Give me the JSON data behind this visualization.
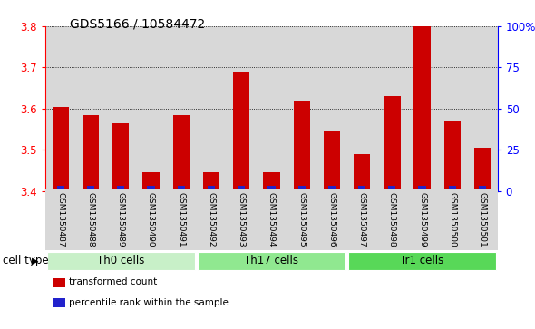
{
  "title": "GDS5166 / 10584472",
  "samples": [
    "GSM1350487",
    "GSM1350488",
    "GSM1350489",
    "GSM1350490",
    "GSM1350491",
    "GSM1350492",
    "GSM1350493",
    "GSM1350494",
    "GSM1350495",
    "GSM1350496",
    "GSM1350497",
    "GSM1350498",
    "GSM1350499",
    "GSM1350500",
    "GSM1350501"
  ],
  "red_values": [
    3.605,
    3.585,
    3.565,
    3.445,
    3.585,
    3.445,
    3.69,
    3.445,
    3.62,
    3.545,
    3.49,
    3.63,
    3.8,
    3.57,
    3.505
  ],
  "blue_values": [
    3,
    3,
    3,
    3,
    3,
    3,
    3,
    3,
    3,
    3,
    3,
    3,
    3,
    3,
    3
  ],
  "ylim_left": [
    3.4,
    3.8
  ],
  "ylim_right": [
    0,
    100
  ],
  "yticks_left": [
    3.4,
    3.5,
    3.6,
    3.7,
    3.8
  ],
  "yticks_right": [
    0,
    25,
    50,
    75,
    100
  ],
  "ytick_labels_right": [
    "0",
    "25",
    "50",
    "75",
    "100%"
  ],
  "groups": [
    {
      "label": "Th0 cells",
      "start": 0,
      "end": 5,
      "color": "#c8f0c8"
    },
    {
      "label": "Th17 cells",
      "start": 5,
      "end": 10,
      "color": "#90e890"
    },
    {
      "label": "Tr1 cells",
      "start": 10,
      "end": 15,
      "color": "#58d858"
    }
  ],
  "cell_type_label": "cell type",
  "legend_items": [
    {
      "color": "#cc0000",
      "label": "transformed count"
    },
    {
      "color": "#2222cc",
      "label": "percentile rank within the sample"
    }
  ],
  "bar_width": 0.55,
  "red_color": "#cc0000",
  "blue_color": "#2222cc",
  "axis_bg": "#d8d8d8",
  "base": 3.4
}
